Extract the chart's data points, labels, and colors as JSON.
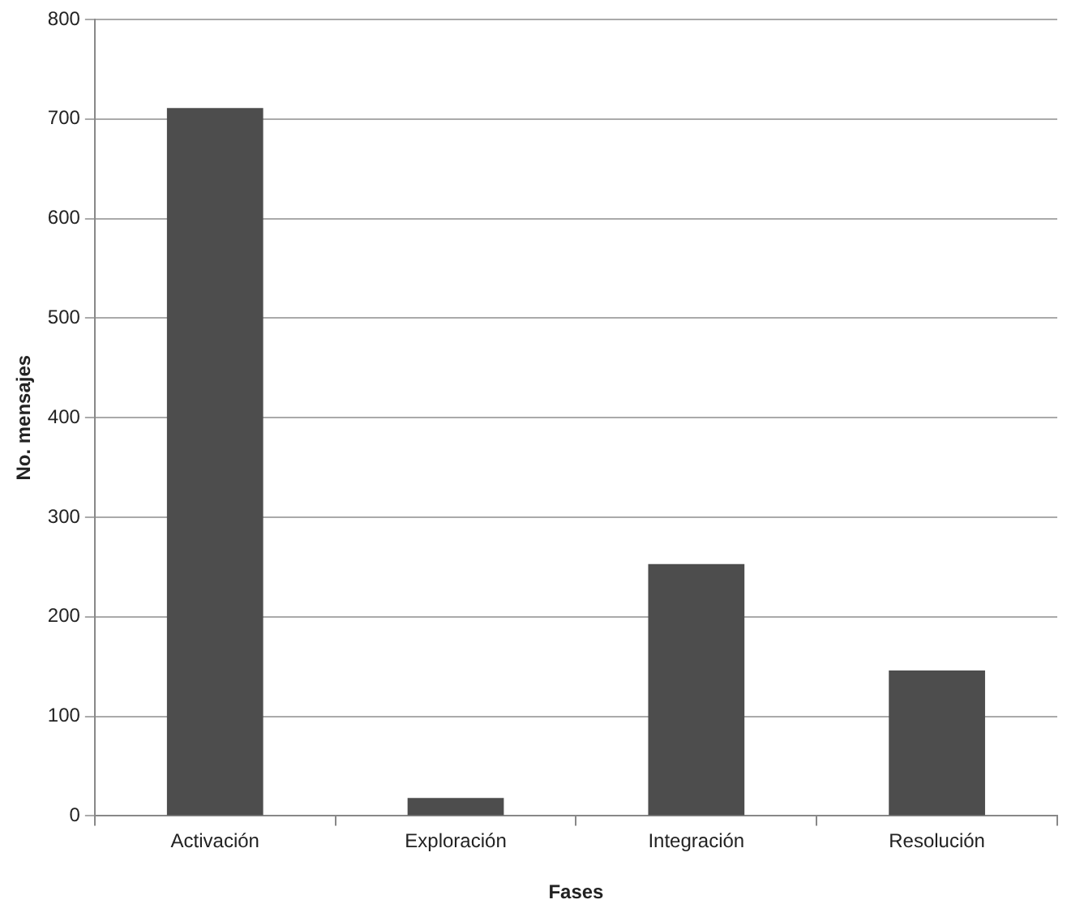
{
  "chart_data": {
    "type": "bar",
    "xlabel": "Fases",
    "ylabel": "No. mensajes",
    "categories": [
      "Activación",
      "Exploración",
      "Integración",
      "Resolución"
    ],
    "values": [
      711,
      18,
      253,
      146
    ],
    "color": "#4d4d4d",
    "ylim": [
      0,
      800
    ],
    "yticks": [
      0,
      100,
      200,
      300,
      400,
      500,
      600,
      700,
      800
    ],
    "grid": "y",
    "legend": false
  }
}
